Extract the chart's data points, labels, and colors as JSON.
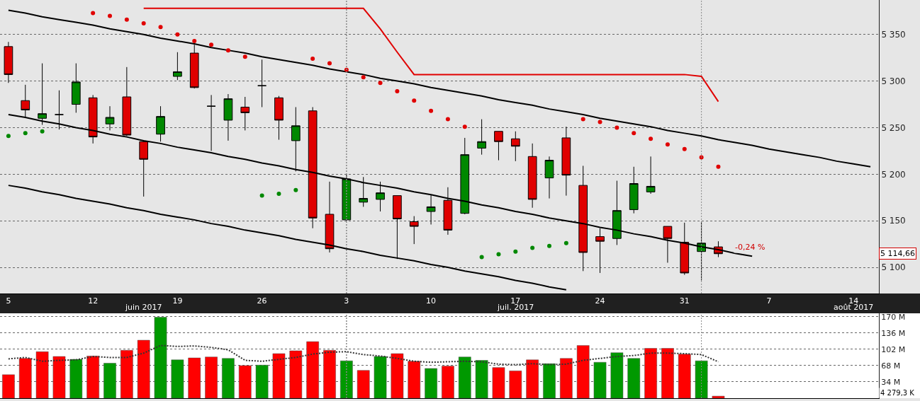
{
  "chart_data": [
    {
      "type": "candlestick",
      "categories": [
        "5",
        null,
        null,
        null,
        null,
        "12",
        null,
        null,
        null,
        null,
        "19",
        null,
        null,
        null,
        null,
        "26",
        null,
        null,
        null,
        null,
        "3",
        null,
        null,
        null,
        null,
        "10",
        null,
        null,
        null,
        null,
        "17",
        null,
        null,
        null,
        null,
        "24",
        null,
        null,
        null,
        null,
        "31",
        null,
        null,
        null,
        null,
        "7",
        null,
        null,
        null,
        null,
        "14",
        null
      ],
      "ohlc": [
        [
          5337,
          5342,
          5298,
          5307
        ],
        [
          5279,
          5296,
          5261,
          5269
        ],
        [
          5260,
          5319,
          5253,
          5265
        ],
        [
          5264,
          5290,
          5248,
          5264
        ],
        [
          5275,
          5319,
          5266,
          5299
        ],
        [
          5282,
          5285,
          5233,
          5240
        ],
        [
          5254,
          5273,
          5247,
          5261
        ],
        [
          5283,
          5315,
          5241,
          5242
        ],
        [
          5235,
          5236,
          5176,
          5216
        ],
        [
          5243,
          5273,
          5235,
          5262
        ],
        [
          5305,
          5331,
          5301,
          5310
        ],
        [
          5330,
          5339,
          5292,
          5293
        ],
        [
          5273,
          5285,
          5225,
          5273
        ],
        [
          5258,
          5286,
          5236,
          5281
        ],
        [
          5272,
          5283,
          5247,
          5266
        ],
        [
          5295,
          5323,
          5272,
          5295
        ],
        [
          5282,
          5284,
          5237,
          5258
        ],
        [
          5236,
          5272,
          5203,
          5252
        ],
        [
          5268,
          5272,
          5142,
          5153
        ],
        [
          5157,
          5192,
          5116,
          5120
        ],
        [
          5151,
          5200,
          5150,
          5195
        ],
        [
          5170,
          5197,
          5165,
          5174
        ],
        [
          5173,
          5192,
          5160,
          5180
        ],
        [
          5177,
          5177,
          5109,
          5152
        ],
        [
          5149,
          5155,
          5125,
          5144
        ],
        [
          5160,
          5178,
          5146,
          5165
        ],
        [
          5172,
          5186,
          5135,
          5140
        ],
        [
          5158,
          5239,
          5157,
          5221
        ],
        [
          5228,
          5259,
          5221,
          5235
        ],
        [
          5246,
          5246,
          5215,
          5235
        ],
        [
          5238,
          5246,
          5214,
          5230
        ],
        [
          5219,
          5233,
          5164,
          5173
        ],
        [
          5196,
          5219,
          5174,
          5215
        ],
        [
          5239,
          5251,
          5177,
          5199
        ],
        [
          5188,
          5209,
          5096,
          5116
        ],
        [
          5133,
          5142,
          5094,
          5128
        ],
        [
          5131,
          5193,
          5124,
          5161
        ],
        [
          5162,
          5208,
          5158,
          5190
        ],
        [
          5181,
          5219,
          5179,
          5187
        ],
        [
          5144,
          5144,
          5105,
          5131
        ],
        [
          5127,
          5148,
          5092,
          5094
        ],
        [
          5117,
          5149,
          5086,
          5126
        ],
        [
          5122,
          5128,
          5111,
          5114.66
        ],
        null,
        null,
        null,
        null,
        null,
        null,
        null,
        null,
        null
      ],
      "colors": [
        "#e00000",
        "#e00000",
        "#008800",
        "#000000",
        "#008800",
        "#e00000",
        "#008800",
        "#e00000",
        "#e00000",
        "#008800",
        "#008800",
        "#e00000",
        "#000000",
        "#008800",
        "#e00000",
        "#000000",
        "#e00000",
        "#008800",
        "#e00000",
        "#e00000",
        "#008800",
        "#008800",
        "#008800",
        "#e00000",
        "#e00000",
        "#008800",
        "#e00000",
        "#008800",
        "#008800",
        "#e00000",
        "#e00000",
        "#e00000",
        "#008800",
        "#e00000",
        "#e00000",
        "#e00000",
        "#008800",
        "#008800",
        "#008800",
        "#e00000",
        "#e00000",
        "#008800",
        "#e00000",
        null,
        null,
        null,
        null,
        null,
        null,
        null,
        null,
        null
      ],
      "series": [
        {
          "type": "line",
          "color": "#000000",
          "values": [
            5376,
            5373,
            5369,
            5366,
            5363,
            5360,
            5356,
            5353,
            5350,
            5346,
            5343,
            5340,
            5336,
            5333,
            5330,
            5326,
            5323,
            5320,
            5317,
            5313,
            5310,
            5307,
            5303,
            5300,
            5297,
            5293,
            5290,
            5287,
            5284,
            5280,
            5277,
            5274,
            5270,
            5267,
            5264,
            5260,
            5257,
            5254,
            5251,
            5247,
            5244,
            5241,
            5237,
            5234,
            5231,
            5227,
            5224,
            5221,
            5218,
            5214,
            5211,
            5208
          ]
        },
        {
          "type": "line",
          "color": "#000000",
          "values": [
            5264,
            5261,
            5257,
            5254,
            5250,
            5247,
            5243,
            5240,
            5236,
            5233,
            5229,
            5226,
            5223,
            5219,
            5216,
            5212,
            5209,
            5205,
            5202,
            5198,
            5195,
            5191,
            5188,
            5185,
            5181,
            5178,
            5174,
            5171,
            5167,
            5164,
            5160,
            5157,
            5153,
            5150,
            5147,
            5143,
            5140,
            5136,
            5133,
            5129,
            5126,
            5122,
            5119,
            5115,
            5112,
            null,
            null,
            null,
            null,
            null,
            null,
            null
          ]
        },
        {
          "type": "line",
          "color": "#000000",
          "values": [
            5188,
            5185,
            5181,
            5178,
            5174,
            5171,
            5168,
            5164,
            5161,
            5157,
            5154,
            5151,
            5147,
            5144,
            5140,
            5137,
            5134,
            5130,
            5127,
            5124,
            5120,
            5117,
            5113,
            5110,
            5107,
            5103,
            5100,
            5096,
            5093,
            5090,
            5086,
            5083,
            5079,
            5076,
            null,
            null,
            null,
            null,
            null,
            null,
            null,
            null,
            null,
            null,
            null,
            null,
            null,
            null,
            null,
            null,
            null,
            null
          ]
        },
        {
          "type": "line",
          "color": "#e00000",
          "values": [
            null,
            null,
            null,
            null,
            null,
            null,
            null,
            null,
            5378,
            5378,
            5378,
            5378,
            5378,
            5378,
            5378,
            5378,
            5378,
            5378,
            5378,
            5378,
            5378,
            5378,
            5356,
            5331,
            5307,
            5307,
            5307,
            5307,
            5307,
            5307,
            5307,
            5307,
            5307,
            5307,
            5307,
            5307,
            5307,
            5307,
            5307,
            5307,
            5307,
            5305,
            5278,
            null,
            null,
            null,
            null,
            null,
            null,
            null,
            null,
            null
          ]
        },
        {
          "type": "scatter",
          "marker": "circle",
          "color": "#e00000",
          "values": [
            null,
            null,
            null,
            null,
            null,
            5373,
            5370,
            5366,
            5362,
            5358,
            5350,
            5343,
            5339,
            5333,
            5326,
            null,
            null,
            null,
            5324,
            5319,
            5312,
            5304,
            5298,
            5289,
            5279,
            5268,
            5259,
            5251,
            null,
            null,
            null,
            null,
            null,
            null,
            5259,
            5256,
            5250,
            5244,
            5238,
            5232,
            5227,
            5218,
            5208,
            null,
            null,
            null,
            null,
            null,
            null,
            null,
            null,
            null
          ]
        },
        {
          "type": "scatter",
          "marker": "circle",
          "color": "#008800",
          "values": [
            5241,
            5244,
            5246,
            null,
            null,
            null,
            null,
            null,
            null,
            null,
            null,
            null,
            null,
            null,
            null,
            5177,
            5179,
            5183,
            null,
            null,
            null,
            null,
            null,
            null,
            null,
            null,
            null,
            null,
            5111,
            5114,
            5117,
            5121,
            5123,
            5126,
            null,
            null,
            null,
            null,
            null,
            null,
            null,
            null,
            null,
            null,
            null,
            null,
            null,
            null,
            null,
            null,
            null,
            null
          ]
        }
      ],
      "ylim": [
        5072,
        5387
      ],
      "yticks": [
        {
          "value": 5100,
          "label": "5 100"
        },
        {
          "value": 5150,
          "label": "5 150"
        },
        {
          "value": 5200,
          "label": "5 200"
        },
        {
          "value": 5250,
          "label": "5 250"
        },
        {
          "value": 5300,
          "label": "5 300"
        },
        {
          "value": 5350,
          "label": "5 350"
        }
      ],
      "grid": "y",
      "ref_lines": [
        {
          "axis": "x",
          "value": "3",
          "color": "#888888",
          "line_style": "dotted"
        }
      ],
      "annotations": [
        "-0,24 %",
        "5 114,66",
        "juin 2017",
        "juil. 2017",
        "août 2017"
      ]
    },
    {
      "type": "bar",
      "categories": [
        "5",
        null,
        null,
        null,
        null,
        "12",
        null,
        null,
        null,
        null,
        "19",
        null,
        null,
        null,
        null,
        "26",
        null,
        null,
        null,
        null,
        "3",
        null,
        null,
        null,
        null,
        "10",
        null,
        null,
        null,
        null,
        "17",
        null,
        null,
        null,
        null,
        "24",
        null,
        null,
        null,
        null,
        "31",
        null,
        null,
        null,
        null,
        "7",
        null,
        null,
        null,
        null,
        "14",
        null
      ],
      "series": [
        {
          "type": "bar",
          "values": [
            49,
            83,
            97,
            87,
            81,
            88,
            73,
            100,
            121,
            169,
            80,
            84,
            86,
            83,
            68,
            69,
            93,
            99,
            118,
            100,
            78,
            58,
            87,
            93,
            77,
            62,
            67,
            86,
            79,
            64,
            57,
            80,
            72,
            83,
            110,
            75,
            95,
            83,
            104,
            104,
            92,
            78,
            4.2793,
            null,
            null,
            null,
            null,
            null,
            null,
            null,
            null,
            null
          ],
          "colors": [
            "#ff0000",
            "#ff0000",
            "#ff0000",
            "#ff0000",
            "#009900",
            "#ff0000",
            "#009900",
            "#ff0000",
            "#ff0000",
            "#009900",
            "#009900",
            "#ff0000",
            "#ff0000",
            "#009900",
            "#ff0000",
            "#009900",
            "#ff0000",
            "#ff0000",
            "#ff0000",
            "#ff0000",
            "#009900",
            "#ff0000",
            "#009900",
            "#ff0000",
            "#ff0000",
            "#009900",
            "#ff0000",
            "#009900",
            "#009900",
            "#ff0000",
            "#ff0000",
            "#ff0000",
            "#009900",
            "#ff0000",
            "#ff0000",
            "#009900",
            "#009900",
            "#009900",
            "#ff0000",
            "#ff0000",
            "#ff0000",
            "#009900",
            "#ff0000",
            "#ff0000",
            "#ff0000",
            "#ff0000",
            "#ff0000",
            "#ff0000",
            "#ff0000",
            "#ff0000",
            "#ff0000",
            "#ff0000"
          ]
        },
        {
          "type": "line",
          "color": "#333333",
          "line_style": "dotted",
          "values": [
            82,
            85,
            77,
            79,
            80,
            87,
            85,
            85,
            94,
            110,
            108,
            109,
            106,
            101,
            79,
            77,
            81,
            85,
            92,
            96,
            97,
            91,
            88,
            83,
            77,
            75,
            76,
            77,
            76,
            71,
            70,
            72,
            70,
            71,
            79,
            83,
            87,
            89,
            94,
            94,
            93,
            91,
            76,
            null,
            null,
            null,
            null,
            null,
            null,
            null,
            null,
            null
          ]
        }
      ],
      "ylim": [
        0,
        177
      ],
      "yticks": [
        {
          "value": 34,
          "label": "34 M"
        },
        {
          "value": 68,
          "label": "68 M"
        },
        {
          "value": 102,
          "label": "102 M"
        },
        {
          "value": 136,
          "label": "136 M"
        },
        {
          "value": 170,
          "label": "170 M"
        }
      ],
      "grid": "y",
      "tick_labels": "y",
      "ref_lines": [
        {
          "axis": "x",
          "value": "3",
          "color": "#888888",
          "line_style": "dotted"
        }
      ],
      "annotations": [
        "4 279,3 K"
      ]
    }
  ]
}
